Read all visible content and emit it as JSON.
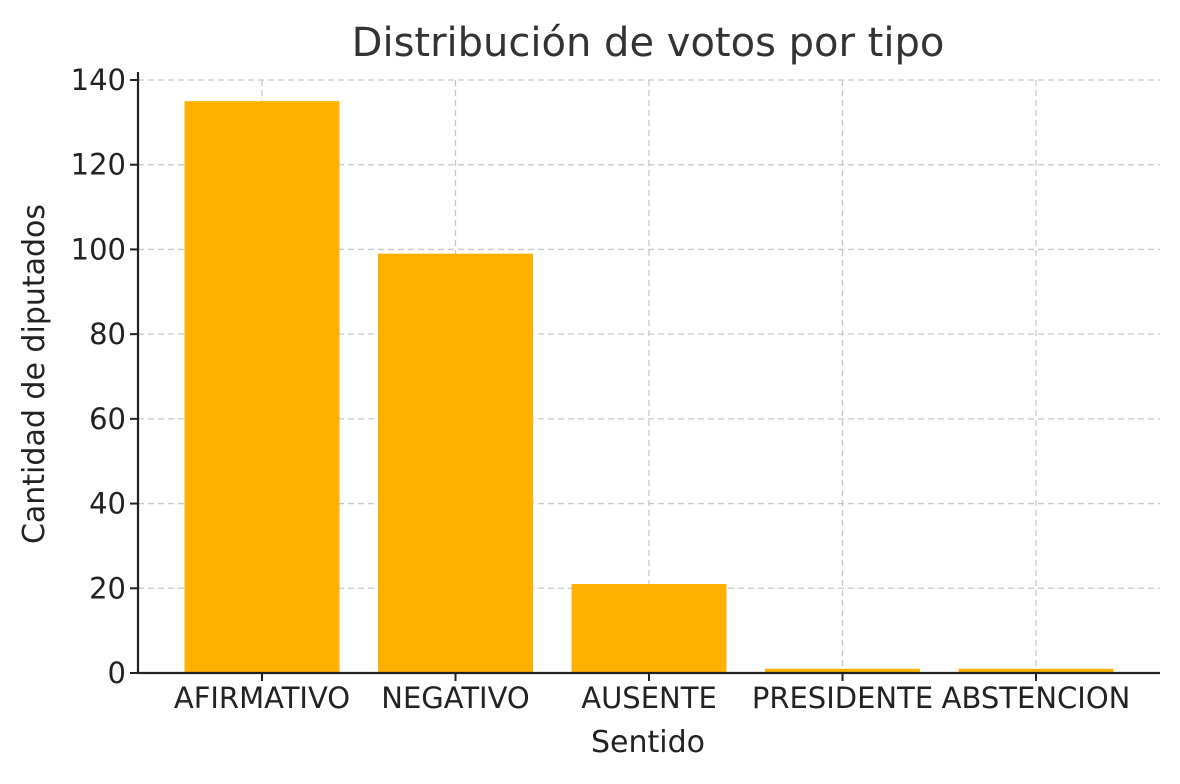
{
  "chart_data": {
    "type": "bar",
    "title": "Distribución de votos por tipo",
    "xlabel": "Sentido",
    "ylabel": "Cantidad de diputados",
    "categories": [
      "AFIRMATIVO",
      "NEGATIVO",
      "AUSENTE",
      "PRESIDENTE",
      "ABSTENCION"
    ],
    "values": [
      135,
      99,
      21,
      1,
      1
    ],
    "ylim": [
      0,
      140
    ],
    "yticks": [
      "0",
      "20",
      "40",
      "60",
      "80",
      "100",
      "120",
      "140"
    ],
    "grid": true,
    "bar_color": "#FFB000"
  }
}
